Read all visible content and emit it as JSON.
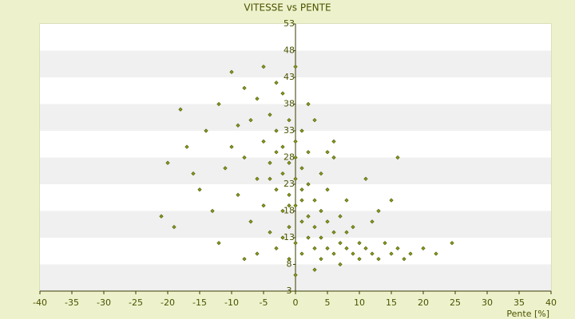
{
  "chart_data": {
    "type": "scatter",
    "title": "VITESSE vs PENTE",
    "x_label": "Pente [%]",
    "x": [
      -21,
      -20,
      -18,
      -17,
      -15,
      -14,
      -13,
      -12,
      -11,
      -10,
      -10,
      -9,
      -8,
      -8,
      -7,
      -7,
      -6,
      -6,
      -5,
      -5,
      -5,
      -4,
      -4,
      -4,
      -3,
      -3,
      -3,
      -3,
      -2,
      -2,
      -2,
      -2,
      -1,
      -1,
      -1,
      -1,
      -1,
      0,
      0,
      0,
      0,
      0,
      0,
      1,
      1,
      1,
      1,
      1,
      2,
      2,
      2,
      2,
      3,
      3,
      3,
      3,
      4,
      4,
      4,
      5,
      5,
      5,
      6,
      6,
      6,
      7,
      7,
      8,
      8,
      9,
      9,
      10,
      10,
      11,
      12,
      12,
      13,
      14,
      15,
      15,
      16,
      17,
      18,
      20,
      22,
      24.5,
      -19,
      -16,
      -12,
      -9,
      -6,
      -3,
      -1,
      2,
      4,
      6,
      8,
      11,
      13,
      16,
      -8,
      -4,
      0,
      3,
      7,
      -2,
      1,
      5
    ],
    "values": [
      17,
      27,
      37,
      30,
      22,
      33,
      18,
      38,
      26,
      44,
      30,
      21,
      41,
      28,
      35,
      16,
      24,
      39,
      45,
      31,
      19,
      27,
      36,
      14,
      33,
      22,
      29,
      11,
      40,
      25,
      18,
      30,
      35,
      21,
      27,
      15,
      9,
      31,
      24,
      19,
      28,
      12,
      45,
      26,
      20,
      16,
      33,
      10,
      23,
      17,
      13,
      29,
      20,
      15,
      11,
      35,
      18,
      13,
      25,
      16,
      11,
      22,
      14,
      10,
      28,
      17,
      12,
      11,
      20,
      10,
      15,
      12,
      9,
      11,
      10,
      16,
      9,
      12,
      10,
      20,
      11,
      9,
      10,
      11,
      10,
      12,
      15,
      25,
      12,
      34,
      10,
      42,
      19,
      38,
      9,
      31,
      14,
      24,
      18,
      28,
      9,
      24,
      6,
      7,
      8,
      13,
      22,
      29
    ],
    "color": "#8a9a1a",
    "xlim": [
      -40,
      40
    ],
    "xticks": [
      -40,
      -35,
      -30,
      -25,
      -20,
      -15,
      -10,
      -5,
      0,
      5,
      10,
      15,
      20,
      25,
      30,
      35,
      40
    ],
    "ylim": [
      3,
      53
    ],
    "yticks": [
      3,
      8,
      13,
      18,
      23,
      28,
      33,
      38,
      43,
      48,
      53
    ],
    "grid": true
  }
}
